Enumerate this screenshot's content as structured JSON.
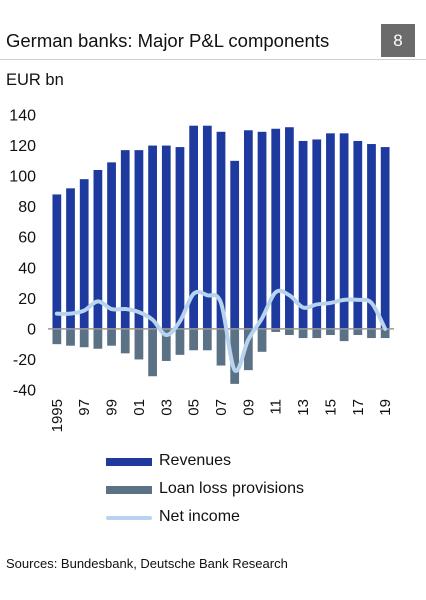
{
  "header": {
    "title": "German banks: Major P&L components",
    "badge": "8"
  },
  "unit_label": "EUR bn",
  "source": "Sources: Bundesbank, Deutsche Bank Research",
  "colors": {
    "revenues": "#1f3a9e",
    "provisions": "#5b7286",
    "net_income": "#b7d3ee",
    "zero_line": "#9a9a9a"
  },
  "chart_data": {
    "type": "bar",
    "title": "German banks: Major P&L components",
    "ylabel": "EUR bn",
    "ylim": [
      -40,
      140
    ],
    "yticks": [
      -40,
      -20,
      0,
      20,
      40,
      60,
      80,
      100,
      120,
      140
    ],
    "categories": [
      "1995",
      "1996",
      "1997",
      "1998",
      "1999",
      "2000",
      "2001",
      "2002",
      "2003",
      "2004",
      "2005",
      "2006",
      "2007",
      "2008",
      "2009",
      "2010",
      "2011",
      "2012",
      "2013",
      "2014",
      "2015",
      "2016",
      "2017",
      "2018",
      "2019"
    ],
    "x_tick_labels": [
      "1995",
      "",
      "97",
      "",
      "99",
      "",
      "01",
      "",
      "03",
      "",
      "05",
      "",
      "07",
      "",
      "09",
      "",
      "11",
      "",
      "13",
      "",
      "15",
      "",
      "17",
      "",
      "19"
    ],
    "grid": false,
    "legend_position": "bottom",
    "series": [
      {
        "name": "Revenues",
        "type": "bar",
        "values": [
          88,
          92,
          98,
          104,
          109,
          117,
          117,
          120,
          120,
          119,
          133,
          133,
          129,
          110,
          130,
          129,
          131,
          132,
          123,
          124,
          128,
          128,
          123,
          121,
          119
        ]
      },
      {
        "name": "Loan loss provisions",
        "type": "bar",
        "values": [
          -10,
          -11,
          -12,
          -13,
          -11,
          -16,
          -20,
          -31,
          -21,
          -17,
          -14,
          -14,
          -24,
          -36,
          -27,
          -15,
          -2,
          -4,
          -6,
          -6,
          -4,
          -8,
          -4,
          -6,
          -6
        ]
      },
      {
        "name": "Net income",
        "type": "line",
        "values": [
          10,
          10,
          12,
          18,
          13,
          13,
          11,
          6,
          -4,
          5,
          23,
          22,
          17,
          -27,
          -7,
          7,
          24,
          22,
          14,
          16,
          17,
          19,
          19,
          17,
          0
        ]
      }
    ]
  }
}
